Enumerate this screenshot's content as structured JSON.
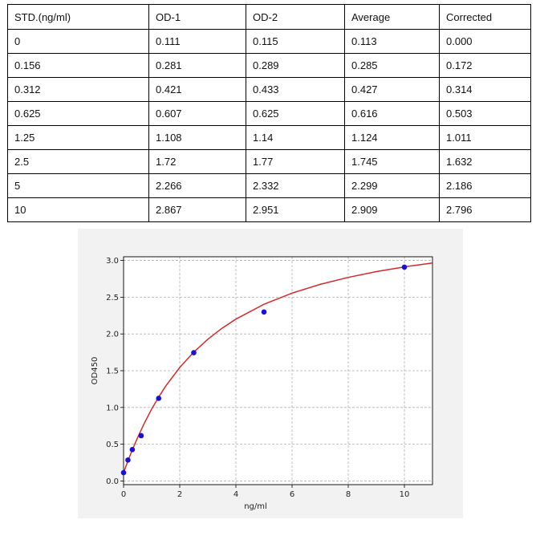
{
  "table": {
    "headers": [
      "STD.(ng/ml)",
      "OD-1",
      "OD-2",
      "Average",
      "Corrected"
    ],
    "rows": [
      [
        "0",
        "0.111",
        "0.115",
        "0.113",
        "0.000"
      ],
      [
        "0.156",
        "0.281",
        "0.289",
        "0.285",
        "0.172"
      ],
      [
        "0.312",
        "0.421",
        "0.433",
        "0.427",
        "0.314"
      ],
      [
        "0.625",
        "0.607",
        "0.625",
        "0.616",
        "0.503"
      ],
      [
        "1.25",
        "1.108",
        "1.14",
        "1.124",
        "1.011"
      ],
      [
        "2.5",
        "1.72",
        "1.77",
        "1.745",
        "1.632"
      ],
      [
        "5",
        "2.266",
        "2.332",
        "2.299",
        "2.186"
      ],
      [
        "10",
        "2.867",
        "2.951",
        "2.909",
        "2.796"
      ]
    ]
  },
  "chart_data": {
    "type": "scatter",
    "xlabel": "ng/ml",
    "ylabel": "OD450",
    "xlim": [
      0,
      11
    ],
    "ylim": [
      -0.05,
      3.05
    ],
    "xticks": [
      0,
      2,
      4,
      6,
      8,
      10
    ],
    "yticks": [
      "0.0",
      "0.5",
      "1.0",
      "1.5",
      "2.0",
      "2.5",
      "3.0"
    ],
    "grid": true,
    "points": {
      "x": [
        0,
        0.156,
        0.312,
        0.625,
        1.25,
        2.5,
        5,
        10
      ],
      "y": [
        0.113,
        0.285,
        0.427,
        0.616,
        1.124,
        1.745,
        2.299,
        2.909
      ]
    },
    "fit_curve": {
      "x": [
        0,
        0.1,
        0.2,
        0.3,
        0.5,
        0.75,
        1,
        1.25,
        1.5,
        2,
        2.5,
        3,
        3.5,
        4,
        5,
        6,
        7,
        8,
        9,
        10,
        11
      ],
      "y": [
        0.11,
        0.216,
        0.317,
        0.413,
        0.591,
        0.795,
        0.978,
        1.142,
        1.29,
        1.544,
        1.753,
        1.928,
        2.076,
        2.202,
        2.404,
        2.556,
        2.675,
        2.77,
        2.848,
        2.912,
        2.965
      ]
    },
    "colors": {
      "points": "#1a0fd6",
      "curve": "#d42a2a",
      "grid": "#b0b0b0"
    }
  }
}
